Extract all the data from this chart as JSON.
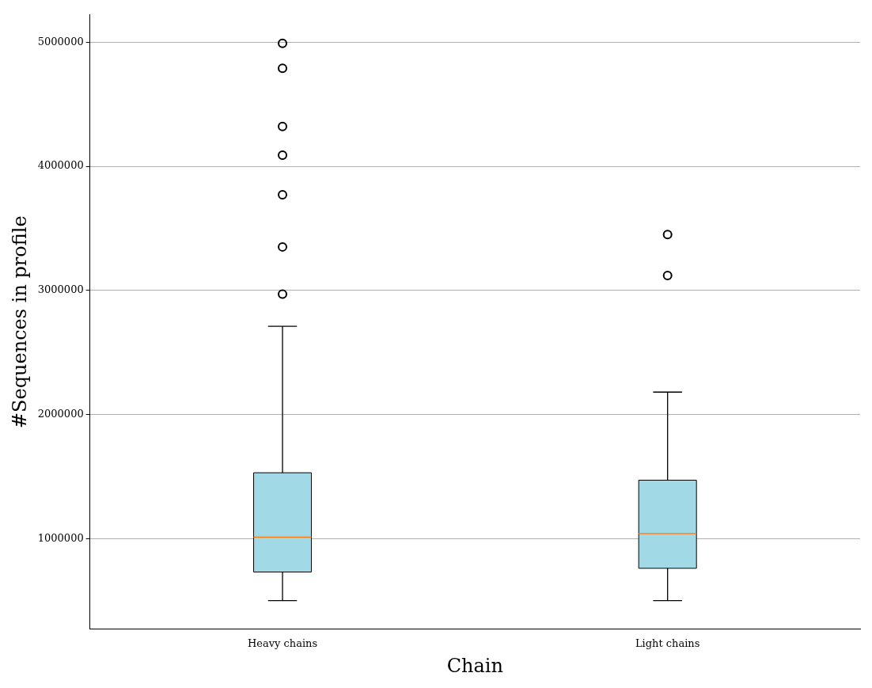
{
  "chart_data": {
    "type": "box",
    "xlabel": "Chain",
    "ylabel": "#Sequences in profile",
    "categories": [
      "Heavy chains",
      "Light chains"
    ],
    "color": "#a2d9e6",
    "boxes": [
      {
        "low": 500000,
        "q1": 730000,
        "median": 1010000,
        "q3": 1530000,
        "high": 2710000,
        "outliers": [
          2970000,
          3350000,
          3770000,
          4090000,
          4320000,
          4790000,
          4990000
        ]
      },
      {
        "low": 500000,
        "q1": 760000,
        "median": 1040000,
        "q3": 1470000,
        "high": 2180000,
        "outliers": [
          3120000,
          3450000
        ]
      }
    ],
    "ylim": [
      270000,
      5220000
    ],
    "yticks": [
      1000000,
      2000000,
      3000000,
      4000000,
      5000000
    ],
    "grid": "y"
  }
}
